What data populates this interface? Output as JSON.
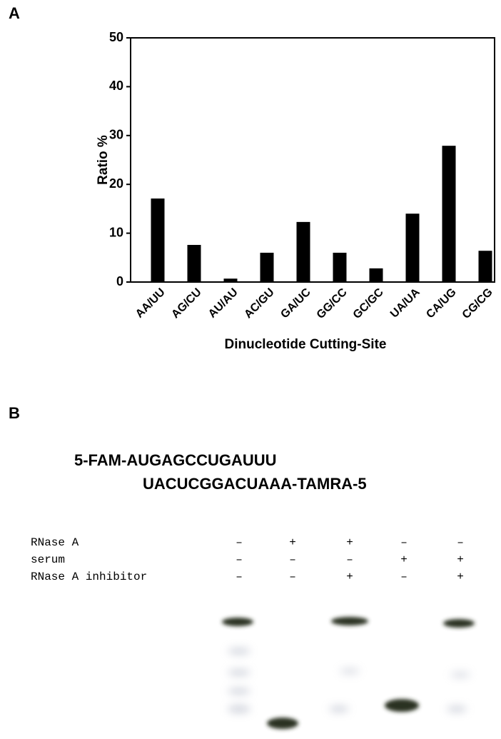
{
  "chart_data": {
    "type": "bar",
    "panel_label": "A",
    "xlabel": "Dinucleotide Cutting-Site",
    "ylabel": "Ratio %",
    "categories": [
      "AA/UU",
      "AG/CU",
      "AU/AU",
      "AC/GU",
      "GA/UC",
      "GG/CC",
      "GC/GC",
      "UA/UA",
      "CA/UG",
      "CG/CG"
    ],
    "values": [
      17.1,
      7.6,
      0.7,
      6.0,
      12.3,
      6.0,
      2.8,
      14.0,
      27.9,
      6.4
    ],
    "color": "#000000",
    "ylim": [
      0,
      50
    ],
    "yticks": [
      0,
      10,
      20,
      30,
      40,
      50
    ],
    "grid": false
  },
  "gel": {
    "panel_label": "B",
    "sequence": [
      "5-FAM-AUGAGCCUGAUUU",
      "UACUCGGACUAAA-TAMRA-5"
    ],
    "conditions": [
      {
        "label": "RNase A",
        "lanes": [
          "–",
          "+",
          "+",
          "–",
          "–"
        ]
      },
      {
        "label": "serum",
        "lanes": [
          "–",
          "–",
          "–",
          "+",
          "+"
        ]
      },
      {
        "label": "RNase A inhibitor",
        "lanes": [
          "–",
          "–",
          "+",
          "–",
          "+"
        ]
      }
    ]
  }
}
